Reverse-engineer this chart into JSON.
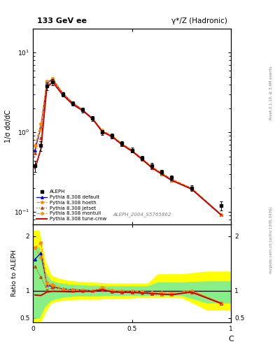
{
  "title_left": "133 GeV ee",
  "title_right": "γ*/Z (Hadronic)",
  "ylabel_main": "1/σ dσ/dC",
  "ylabel_ratio": "Ratio to ALEPH",
  "xlabel": "C",
  "ref_label": "ALEPH_2004_S5765862",
  "right_label_top": "Rivet 3.1.10, ≥ 3.4M events",
  "right_label_bot": "mcplots.cern.ch [arXiv:1306.3436]",
  "C_data": [
    0.01,
    0.04,
    0.07,
    0.1,
    0.15,
    0.2,
    0.25,
    0.3,
    0.35,
    0.4,
    0.45,
    0.5,
    0.55,
    0.6,
    0.65,
    0.7,
    0.8,
    0.95
  ],
  "aleph_y": [
    0.38,
    0.68,
    3.8,
    4.3,
    3.0,
    2.3,
    1.9,
    1.5,
    1.0,
    0.9,
    0.72,
    0.6,
    0.48,
    0.38,
    0.32,
    0.27,
    0.2,
    0.12
  ],
  "aleph_err": [
    0.06,
    0.1,
    0.4,
    0.4,
    0.2,
    0.15,
    0.12,
    0.1,
    0.07,
    0.06,
    0.05,
    0.04,
    0.03,
    0.03,
    0.02,
    0.02,
    0.015,
    0.015
  ],
  "tune_cmw_y": [
    0.35,
    0.62,
    3.7,
    4.25,
    2.95,
    2.25,
    1.88,
    1.48,
    1.02,
    0.88,
    0.7,
    0.58,
    0.46,
    0.36,
    0.3,
    0.25,
    0.195,
    0.092
  ],
  "default_y": [
    0.6,
    1.15,
    4.2,
    4.6,
    3.1,
    2.35,
    1.92,
    1.5,
    1.02,
    0.88,
    0.7,
    0.58,
    0.47,
    0.36,
    0.3,
    0.25,
    0.195,
    0.092
  ],
  "hoeth_y": [
    0.68,
    1.28,
    4.35,
    4.7,
    3.05,
    2.3,
    1.9,
    1.5,
    1.03,
    0.89,
    0.71,
    0.59,
    0.47,
    0.37,
    0.31,
    0.26,
    0.2,
    0.093
  ],
  "jetset_y": [
    0.55,
    0.85,
    3.85,
    4.55,
    3.05,
    2.32,
    1.9,
    1.49,
    1.02,
    0.88,
    0.7,
    0.58,
    0.46,
    0.36,
    0.3,
    0.25,
    0.195,
    0.092
  ],
  "montull_y": [
    0.68,
    1.1,
    4.2,
    4.8,
    3.1,
    2.35,
    1.92,
    1.5,
    1.06,
    0.91,
    0.72,
    0.6,
    0.47,
    0.37,
    0.3,
    0.25,
    0.2,
    0.093
  ],
  "color_cmw": "#cc0000",
  "color_default": "#0000cc",
  "color_hoeth": "#ff8800",
  "color_jetset": "#cc4400",
  "color_montull": "#ff8800",
  "band_C": [
    0.0,
    0.03,
    0.06,
    0.09,
    0.13,
    0.18,
    0.23,
    0.28,
    0.33,
    0.38,
    0.43,
    0.48,
    0.53,
    0.58,
    0.63,
    0.68,
    0.75,
    0.88,
    1.0
  ],
  "band_yellow_lo": [
    0.35,
    0.35,
    0.6,
    0.78,
    0.82,
    0.84,
    0.85,
    0.85,
    0.85,
    0.87,
    0.87,
    0.87,
    0.88,
    0.88,
    0.88,
    0.88,
    0.88,
    0.65,
    0.65
  ],
  "band_yellow_hi": [
    2.1,
    2.1,
    1.55,
    1.28,
    1.22,
    1.18,
    1.16,
    1.15,
    1.14,
    1.13,
    1.13,
    1.13,
    1.13,
    1.13,
    1.3,
    1.3,
    1.3,
    1.35,
    1.35
  ],
  "band_green_lo": [
    0.5,
    0.5,
    0.72,
    0.83,
    0.87,
    0.9,
    0.91,
    0.91,
    0.91,
    0.92,
    0.92,
    0.92,
    0.92,
    0.92,
    0.92,
    0.92,
    0.92,
    0.78,
    0.78
  ],
  "band_green_hi": [
    1.8,
    1.8,
    1.35,
    1.18,
    1.14,
    1.11,
    1.1,
    1.09,
    1.09,
    1.08,
    1.08,
    1.08,
    1.08,
    1.08,
    1.15,
    1.15,
    1.15,
    1.17,
    1.17
  ]
}
